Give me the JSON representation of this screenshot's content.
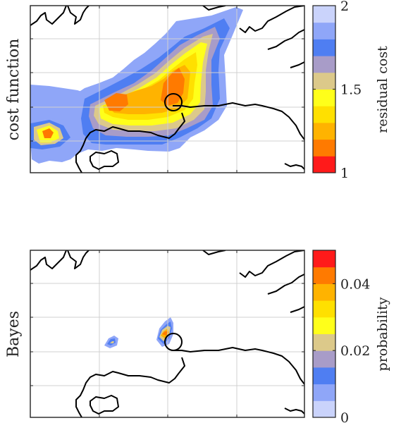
{
  "chart_data": [
    {
      "type": "heatmap",
      "ylabel": "cost function",
      "colorbar": {
        "label": "residual cost",
        "range": [
          1,
          2
        ],
        "tick_labels": [
          "1",
          "1.5",
          "2"
        ],
        "tick_values": [
          1,
          1.5,
          2
        ],
        "colors": [
          "#ff1a1a",
          "#ff7a00",
          "#ffb300",
          "#ffe000",
          "#ffff1a",
          "#dcc98a",
          "#a89cc8",
          "#4f7ef2",
          "#8fa6f8",
          "#cad3fb"
        ]
      },
      "grid": true,
      "map": "coastline outline",
      "annotation": "circle marking reference location",
      "blobs": [
        {
          "name": "main-core",
          "cx": 0.5,
          "cy": 0.35,
          "level": 1.15
        },
        {
          "name": "west-core",
          "cx": 0.29,
          "cy": 0.44,
          "level": 1.3
        },
        {
          "name": "coast-strip",
          "cx": 0.07,
          "cy": 0.6,
          "level": 1.45
        }
      ]
    },
    {
      "type": "heatmap",
      "ylabel": "Bayes",
      "colorbar": {
        "label": "probability",
        "range": [
          0,
          0.05
        ],
        "tick_labels": [
          "0",
          "0.02",
          "0.04"
        ],
        "tick_values": [
          0,
          0.02,
          0.04
        ],
        "colors": [
          "#cad3fb",
          "#8fa6f8",
          "#4f7ef2",
          "#a89cc8",
          "#dcc98a",
          "#ffff1a",
          "#ffe000",
          "#ffb300",
          "#ff7a00",
          "#ff1a1a"
        ]
      },
      "grid": true,
      "map": "coastline outline",
      "annotation": "circle marking reference location",
      "blobs": [
        {
          "name": "east-peak",
          "cx": 0.505,
          "cy": 0.485,
          "level": 0.04
        },
        {
          "name": "west-peak",
          "cx": 0.305,
          "cy": 0.545,
          "level": 0.02
        }
      ]
    }
  ]
}
